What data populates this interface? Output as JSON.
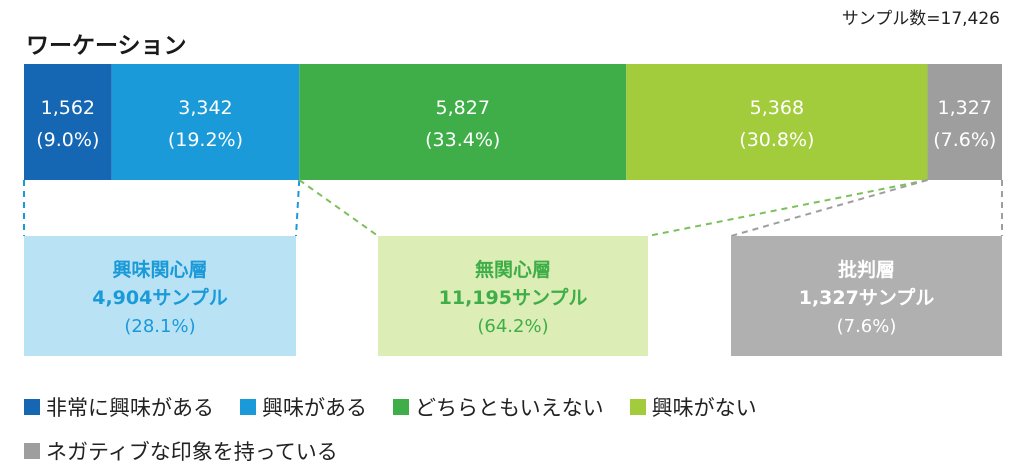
{
  "title": "ワーケーション",
  "sample_label": "サンプル数=17,426",
  "colors": {
    "very_interested": "#1667b3",
    "interested": "#1a9ad8",
    "neutral": "#3fae49",
    "not_interested": "#a3cc3c",
    "negative": "#9e9e9e",
    "interest_group_bg": "#b9e2f5",
    "indifferent_group_bg": "#dcedb5",
    "critical_group_bg": "#b0b0b0"
  },
  "chart_data": {
    "type": "bar",
    "orientation": "horizontal-stacked",
    "total": 17426,
    "segments": [
      {
        "name": "非常に興味がある",
        "value": 1562,
        "label": "1,562",
        "pct": "(9.0%)",
        "color": "#1667b3"
      },
      {
        "name": "興味がある",
        "value": 3342,
        "label": "3,342",
        "pct": "(19.2%)",
        "color": "#1a9ad8"
      },
      {
        "name": "どちらともいえない",
        "value": 5827,
        "label": "5,827",
        "pct": "(33.4%)",
        "color": "#3fae49"
      },
      {
        "name": "興味がない",
        "value": 5368,
        "label": "5,368",
        "pct": "(30.8%)",
        "color": "#a3cc3c"
      },
      {
        "name": "ネガティブな印象を持っている",
        "value": 1327,
        "label": "1,327",
        "pct": "(7.6%)",
        "color": "#9e9e9e"
      }
    ],
    "groups": [
      {
        "name": "興味関心層",
        "count": "4,904サンプル",
        "pct": "(28.1%)",
        "from": 0,
        "to": 1,
        "bg": "#b9e2f5",
        "text_color": "#1a9ad8",
        "line_color": "#1a9ad8"
      },
      {
        "name": "無関心層",
        "count": "11,195サンプル",
        "pct": "(64.2%)",
        "from": 2,
        "to": 3,
        "bg": "#dcedb5",
        "text_color": "#3fae49",
        "line_color": "#7cc05a"
      },
      {
        "name": "批判層",
        "count": "1,327サンプル",
        "pct": "(7.6%)",
        "from": 4,
        "to": 4,
        "bg": "#b0b0b0",
        "text_color": "#ffffff",
        "line_color": "#9e9e9e"
      }
    ],
    "legend": [
      {
        "label": "非常に興味がある",
        "color": "#1667b3"
      },
      {
        "label": "興味がある",
        "color": "#1a9ad8"
      },
      {
        "label": "どちらともいえない",
        "color": "#3fae49"
      },
      {
        "label": "興味がない",
        "color": "#a3cc3c"
      },
      {
        "label": "ネガティブな印象を持っている",
        "color": "#9e9e9e"
      }
    ]
  }
}
